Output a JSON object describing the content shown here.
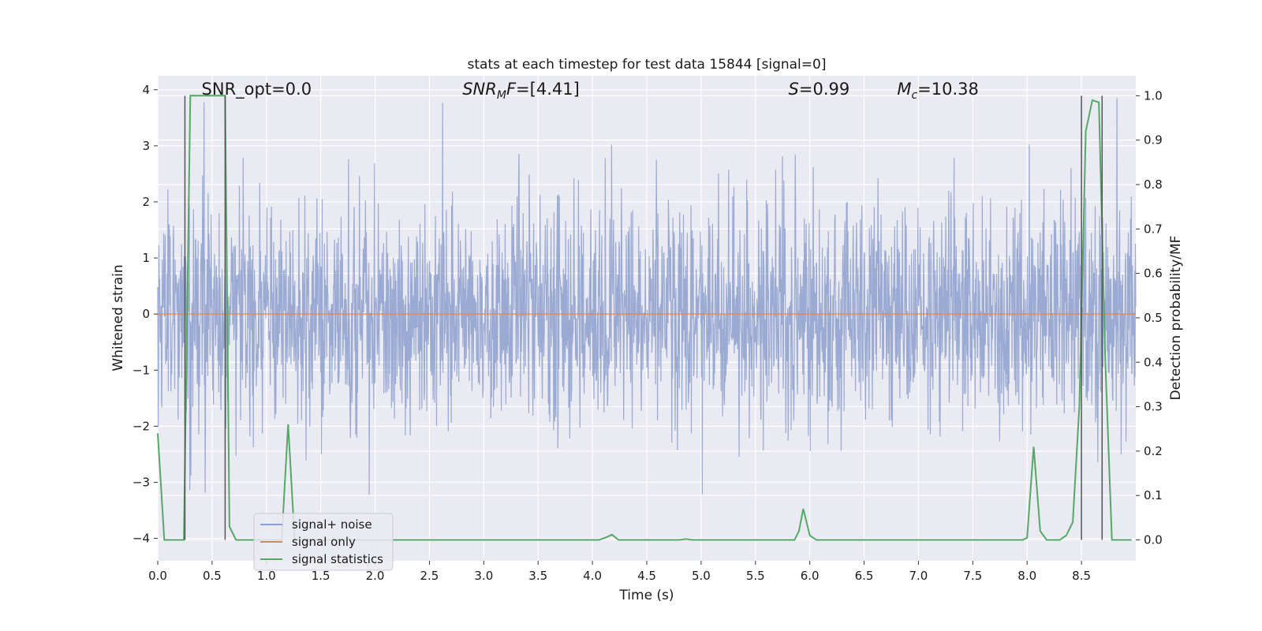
{
  "chart_data": {
    "type": "line",
    "title": "stats at each timestep for test data 15844 [signal=0]",
    "xlabel": "Time (s)",
    "ylabel": "Whitened strain",
    "ylabel_right": "Detection probability/MF",
    "xlim": [
      0.0,
      9.0
    ],
    "ylim": [
      -4.4,
      4.25
    ],
    "ylim_right": [
      -0.047,
      1.045
    ],
    "x_ticks": [
      0.0,
      0.5,
      1.0,
      1.5,
      2.0,
      2.5,
      3.0,
      3.5,
      4.0,
      4.5,
      5.0,
      5.5,
      6.0,
      6.5,
      7.0,
      7.5,
      8.0,
      8.5
    ],
    "x_tick_labels": [
      "0.0",
      "0.5",
      "1.0",
      "1.5",
      "2.0",
      "2.5",
      "3.0",
      "3.5",
      "4.0",
      "4.5",
      "5.0",
      "5.5",
      "6.0",
      "6.5",
      "7.0",
      "7.5",
      "8.0",
      "8.5"
    ],
    "y_ticks": [
      -4,
      -3,
      -2,
      -1,
      0,
      1,
      2,
      3,
      4
    ],
    "y_tick_labels": [
      "−4",
      "−3",
      "−2",
      "−1",
      "0",
      "1",
      "2",
      "3",
      "4"
    ],
    "y_ticks_right": [
      0.0,
      0.1,
      0.2,
      0.3,
      0.4,
      0.5,
      0.6,
      0.7,
      0.8,
      0.9,
      1.0
    ],
    "y_tick_labels_right": [
      "0.0",
      "0.1",
      "0.2",
      "0.3",
      "0.4",
      "0.5",
      "0.6",
      "0.7",
      "0.8",
      "0.9",
      "1.0"
    ],
    "grid": true,
    "annotations": [
      {
        "text": "SNR_opt=0.0",
        "x": 0.2,
        "y": 4.0
      },
      {
        "html": "<tspan font-style='italic'>SNR</tspan><tspan font-style='italic' font-size='14' dy='5'>M</tspan><tspan font-style='italic' dy='-5'>F</tspan>=[4.41]",
        "text": "SNR_MF=[4.41]",
        "x": 2.6,
        "y": 4.0
      },
      {
        "html": "<tspan font-style='italic'>S</tspan>=0.99",
        "text": "S=0.99",
        "x": 5.6,
        "y": 4.0
      },
      {
        "html": "<tspan font-style='italic'>M</tspan><tspan font-style='italic' font-size='14' dy='5'>c</tspan><tspan dy='-5'>=10.38</tspan>",
        "text": "Mc=10.38",
        "x": 6.6,
        "y": 4.0
      }
    ],
    "vertical_lines": [
      0.25,
      0.62,
      8.5,
      8.69
    ],
    "legend": {
      "placement": "lower-left",
      "entries": [
        "signal+ noise",
        "signal only",
        "signal statistics"
      ]
    },
    "series": [
      {
        "name": "signal+ noise",
        "color": "#8c9fcc",
        "kind": "noise",
        "description": "whitened strain time series, approx. unit-variance noise with peaks between about -3.6 and 3.9",
        "extremes": {
          "max": 3.9,
          "min": -3.6,
          "typical_std": 1.0
        }
      },
      {
        "name": "signal only",
        "color": "#dd8452",
        "kind": "constant",
        "y": 0.0
      },
      {
        "name": "signal statistics",
        "color": "#55a868",
        "axis": "right",
        "x": [
          0.0,
          0.06,
          0.12,
          0.18,
          0.24,
          0.3,
          0.36,
          0.42,
          0.48,
          0.54,
          0.6,
          0.62,
          0.66,
          0.72,
          0.78,
          0.84,
          0.9,
          0.96,
          1.02,
          1.08,
          1.14,
          1.2,
          1.26,
          1.32,
          1.38,
          1.44,
          1.5,
          1.56,
          1.62,
          1.68,
          1.74,
          1.8,
          4.0,
          4.06,
          4.12,
          4.18,
          4.24,
          4.3,
          4.8,
          4.86,
          4.92,
          5.8,
          5.86,
          5.9,
          5.94,
          6.0,
          6.06,
          6.12,
          7.9,
          7.96,
          8.0,
          8.06,
          8.12,
          8.18,
          8.24,
          8.3,
          8.36,
          8.42,
          8.48,
          8.54,
          8.6,
          8.66,
          8.72,
          8.78,
          8.84,
          8.9,
          8.96
        ],
        "values": [
          0.24,
          0.0,
          0.0,
          0.0,
          0.0,
          1.0,
          1.0,
          1.0,
          1.0,
          1.0,
          1.0,
          1.0,
          0.03,
          0.0,
          0.0,
          0.0,
          0.0,
          0.0,
          0.0,
          0.0,
          0.0,
          0.26,
          0.0,
          0.0,
          0.0,
          0.0,
          0.0,
          0.0,
          0.0,
          0.0,
          0.0,
          0.0,
          0.0,
          0.0,
          0.005,
          0.012,
          0.0,
          0.0,
          0.0,
          0.002,
          0.0,
          0.0,
          0.0,
          0.02,
          0.07,
          0.01,
          0.0,
          0.0,
          0.0,
          0.0,
          0.005,
          0.21,
          0.02,
          0.0,
          0.0,
          0.0,
          0.01,
          0.04,
          0.3,
          0.92,
          0.99,
          0.985,
          0.4,
          0.0,
          0.0,
          0.0,
          0.0
        ]
      }
    ]
  }
}
